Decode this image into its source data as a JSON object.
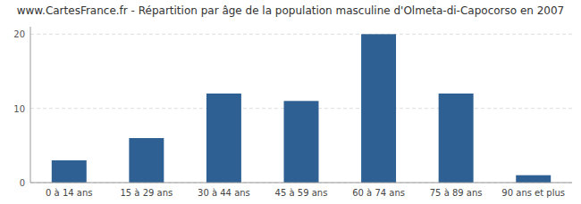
{
  "chart_data": {
    "type": "bar",
    "title": "www.CartesFrance.fr - Répartition par âge de la population masculine d'Olmeta-di-Capocorso en 2007",
    "categories": [
      "0 à 14 ans",
      "15 à 29 ans",
      "30 à 44 ans",
      "45 à 59 ans",
      "60 à 74 ans",
      "75 à 89 ans",
      "90 ans et plus"
    ],
    "values": [
      3,
      6,
      12,
      11,
      20,
      12,
      1
    ],
    "color": "#2e6094",
    "ylim": [
      0,
      21
    ],
    "yticks": [
      0,
      10,
      20
    ],
    "grid": true
  }
}
